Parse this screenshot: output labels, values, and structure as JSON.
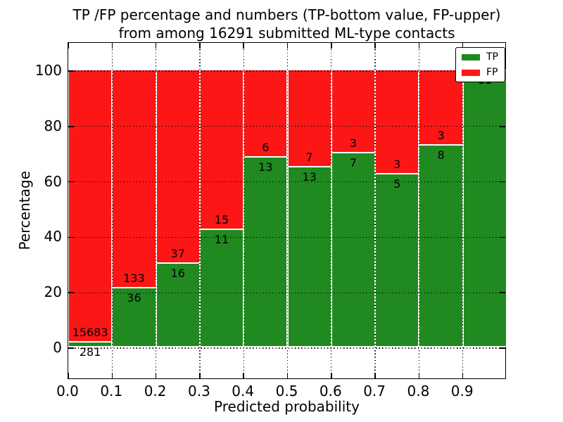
{
  "title": {
    "line1": "TP /FP percentage and numbers (TP-bottom value, FP-upper)",
    "line2": "from among 16291 submitted ML-type contacts"
  },
  "axes": {
    "ylabel": "Percentage",
    "xlabel": "Predicted probability",
    "ytick_labels": [
      "0",
      "20",
      "40",
      "60",
      "80",
      "100"
    ],
    "xtick_labels": [
      "0.0",
      "0.1",
      "0.2",
      "0.3",
      "0.4",
      "0.5",
      "0.6",
      "0.7",
      "0.8",
      "0.9"
    ]
  },
  "legend": {
    "items": [
      {
        "label": "TP",
        "color": "#208a20"
      },
      {
        "label": "FP",
        "color": "#fc1616"
      }
    ]
  },
  "colors": {
    "tp_green": "#208a20",
    "fp_red": "#fc1616",
    "bar_edge": "#ffffff",
    "grid": "#000000"
  },
  "chart_data": {
    "type": "bar",
    "stacked": true,
    "normalized_to_percent": true,
    "title": "TP /FP percentage and numbers (TP-bottom value, FP-upper) from among 16291 submitted ML-type contacts",
    "xlabel": "Predicted probability",
    "ylabel": "Percentage",
    "total_contacts": 16291,
    "bin_edges": [
      0.0,
      0.1,
      0.2,
      0.3,
      0.4,
      0.5,
      0.6,
      0.7,
      0.8,
      0.9,
      1.0
    ],
    "xlim": [
      0.0,
      1.0
    ],
    "ylim": [
      -11.5,
      110.5
    ],
    "grid": "dotted",
    "legend_position": "upper right",
    "series": [
      {
        "name": "TP",
        "counts": [
          281,
          36,
          16,
          11,
          13,
          13,
          7,
          5,
          8,
          11
        ]
      },
      {
        "name": "FP",
        "counts": [
          15683,
          133,
          37,
          15,
          6,
          7,
          3,
          3,
          3,
          0
        ]
      }
    ],
    "bars": [
      {
        "range": "0.0-0.1",
        "tp": 281,
        "fp": 15683,
        "tp_label": "281",
        "fp_label": "15683"
      },
      {
        "range": "0.1-0.2",
        "tp": 36,
        "fp": 133,
        "tp_label": "36",
        "fp_label": "133"
      },
      {
        "range": "0.2-0.3",
        "tp": 16,
        "fp": 37,
        "tp_label": "16",
        "fp_label": "37"
      },
      {
        "range": "0.3-0.4",
        "tp": 11,
        "fp": 15,
        "tp_label": "11",
        "fp_label": "15"
      },
      {
        "range": "0.4-0.5",
        "tp": 13,
        "fp": 6,
        "tp_label": "13",
        "fp_label": "6"
      },
      {
        "range": "0.5-0.6",
        "tp": 13,
        "fp": 7,
        "tp_label": "13",
        "fp_label": "7"
      },
      {
        "range": "0.6-0.7",
        "tp": 7,
        "fp": 3,
        "tp_label": "7",
        "fp_label": "3"
      },
      {
        "range": "0.7-0.8",
        "tp": 5,
        "fp": 3,
        "tp_label": "5",
        "fp_label": "3"
      },
      {
        "range": "0.8-0.9",
        "tp": 8,
        "fp": 3,
        "tp_label": "8",
        "fp_label": "3"
      },
      {
        "range": "0.9-1.0",
        "tp": 11,
        "fp": 0,
        "tp_label": "11",
        "fp_label": ""
      }
    ]
  }
}
